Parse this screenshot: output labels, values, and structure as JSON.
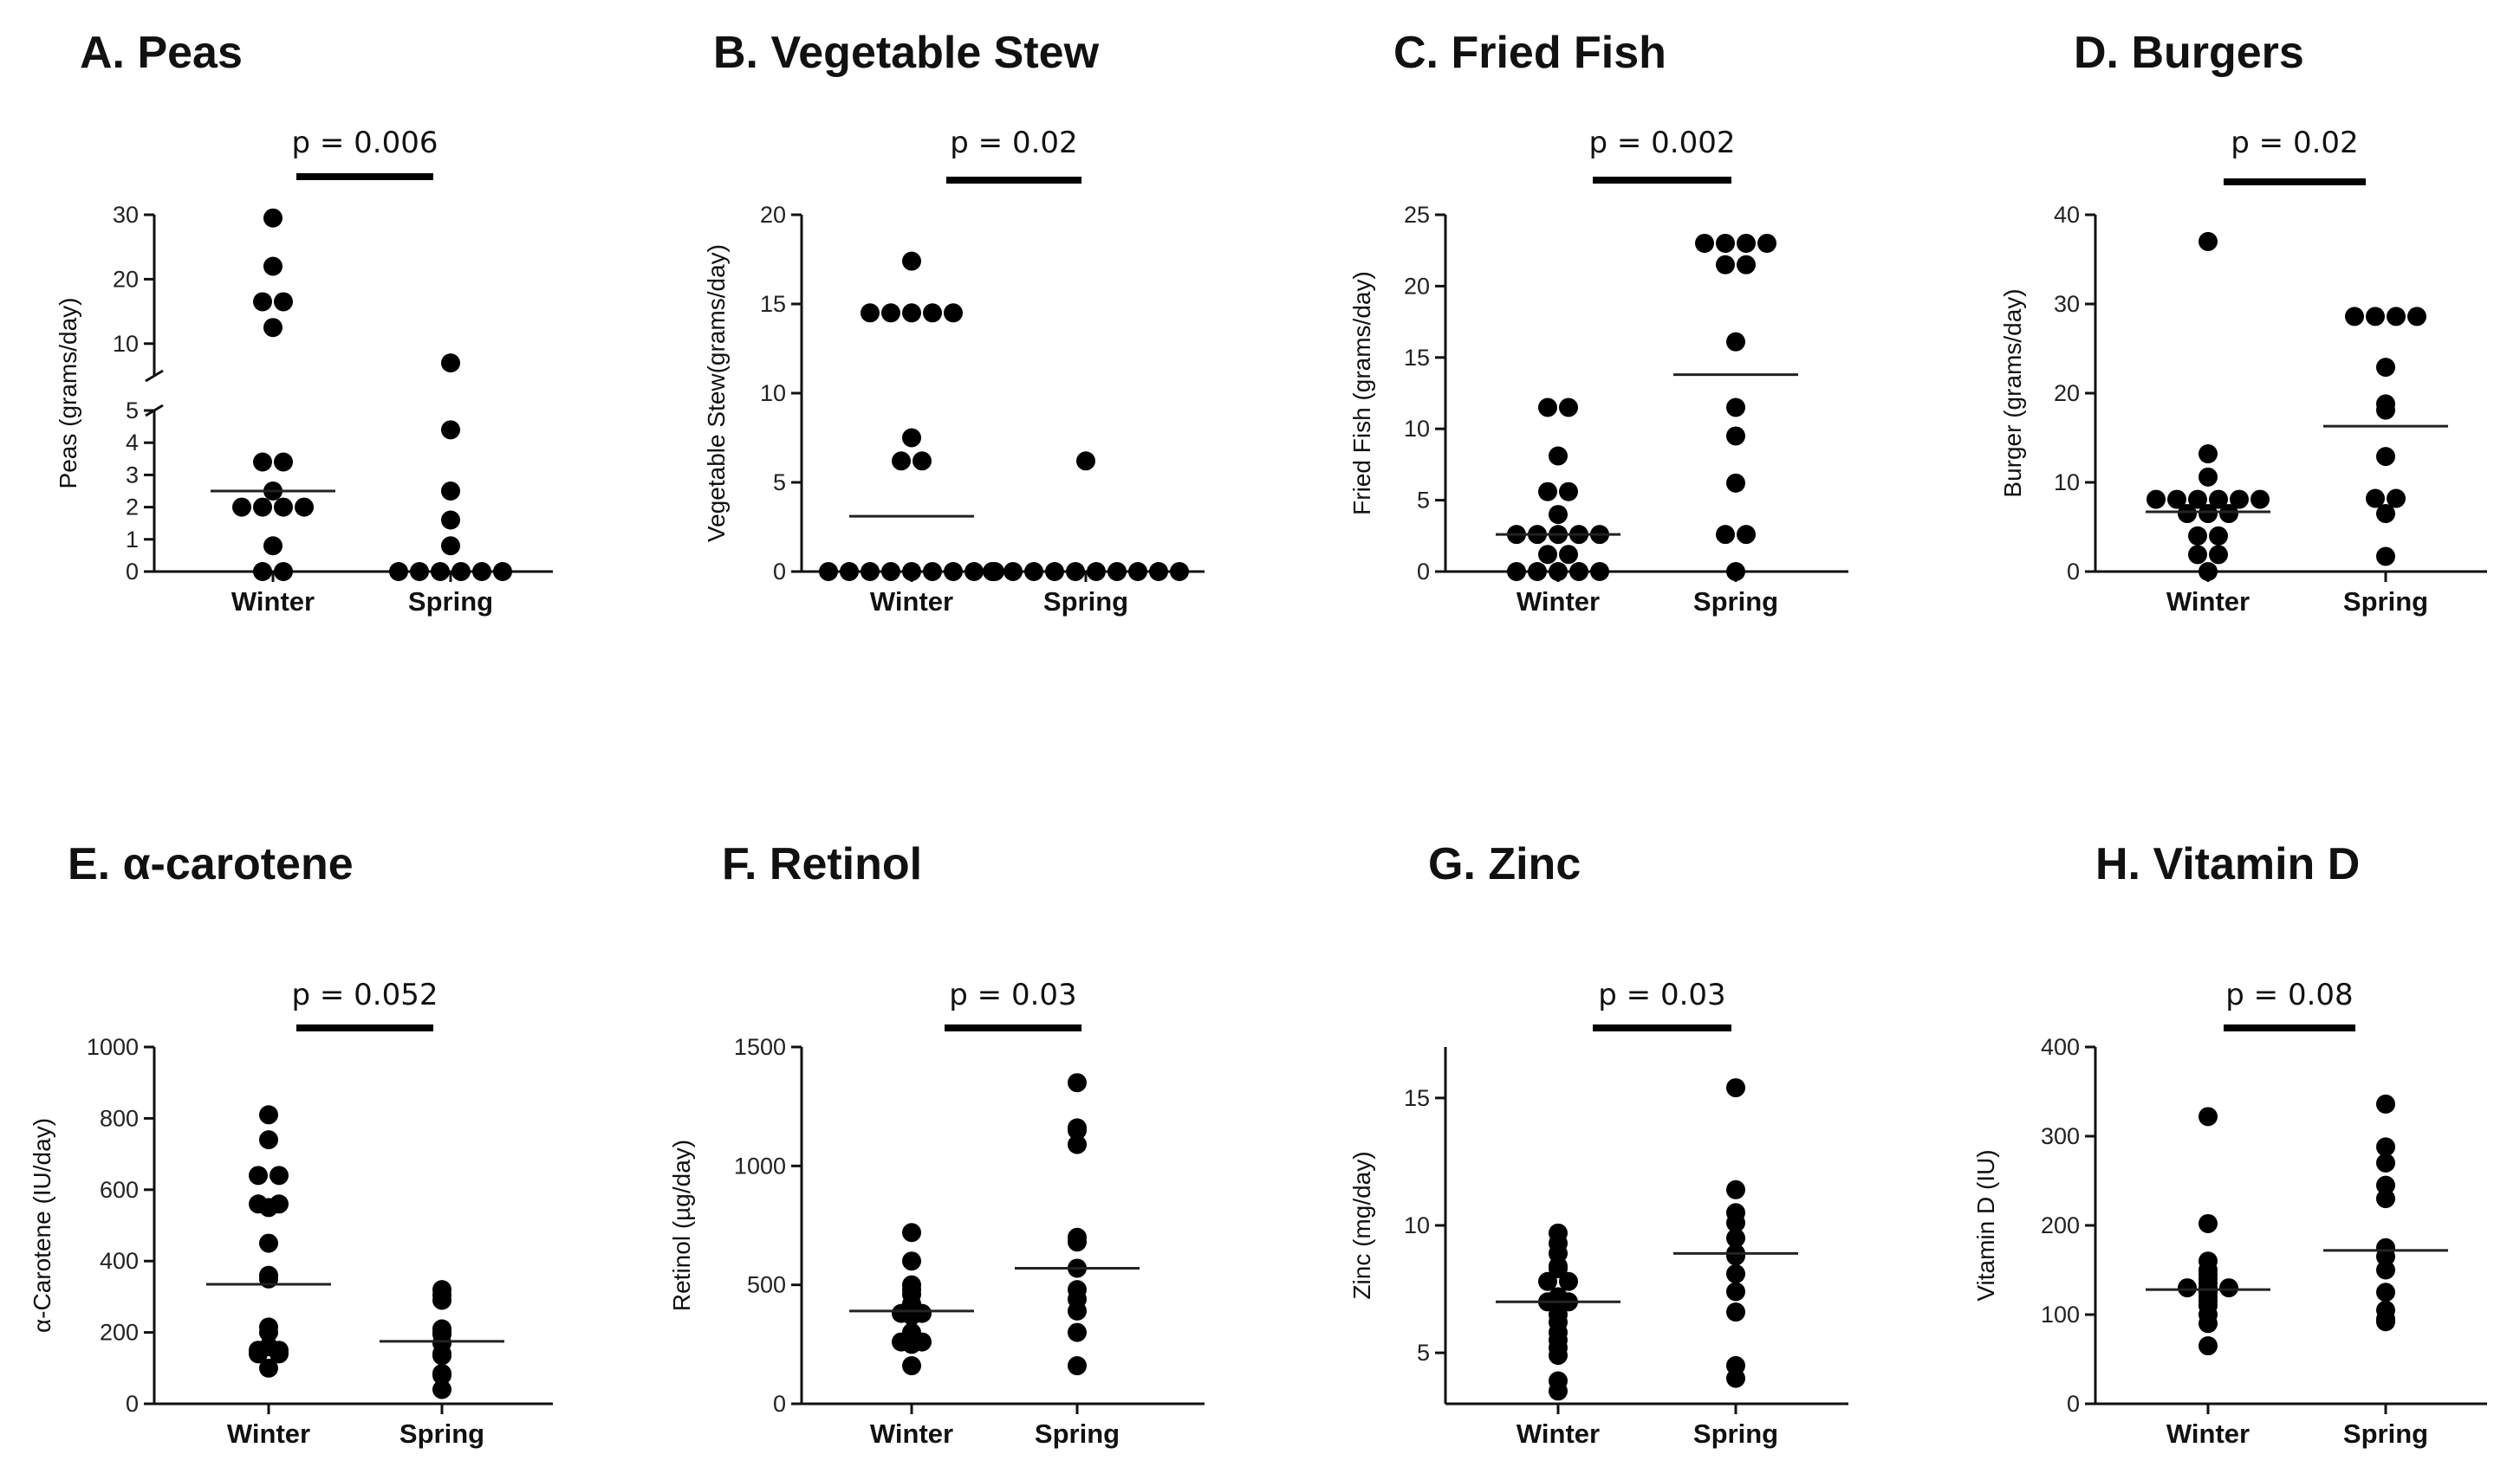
{
  "chart_data": [
    {
      "type": "scatter",
      "panel": "A",
      "title": "A.  Peas",
      "ylabel": "Peas (grams/day)",
      "categories": [
        "Winter",
        "Spring"
      ],
      "axis_break": {
        "lower_range": [
          0,
          5
        ],
        "upper_range": [
          5,
          30
        ]
      },
      "yticks_lower": [
        0,
        1,
        2,
        3,
        4,
        5
      ],
      "yticks_upper": [
        10,
        20,
        30
      ],
      "ylim": [
        0,
        30
      ],
      "pvalue": "p = 0.006",
      "series": [
        {
          "name": "Winter",
          "values": [
            29.5,
            22,
            16.5,
            16.5,
            12.5,
            3.4,
            3.4,
            2.5,
            2.0,
            2.0,
            2.0,
            2.0,
            0.8,
            0,
            0
          ],
          "mean": 2.5
        },
        {
          "name": "Spring",
          "values": [
            7,
            4.4,
            2.5,
            1.6,
            0.8,
            0,
            0,
            0,
            0,
            0,
            0
          ],
          "mean": null
        }
      ]
    },
    {
      "type": "scatter",
      "panel": "B",
      "title": "B. Vegetable Stew",
      "ylabel": "Vegetable Stew(grams/day)",
      "categories": [
        "Winter",
        "Spring"
      ],
      "yticks": [
        0,
        5,
        10,
        15,
        20
      ],
      "ylim": [
        0,
        20
      ],
      "pvalue": "p = 0.02",
      "series": [
        {
          "name": "Winter",
          "values": [
            17.4,
            14.5,
            14.5,
            14.5,
            14.5,
            14.5,
            7.5,
            6.2,
            6.2,
            0,
            0,
            0,
            0,
            0,
            0,
            0,
            0,
            0
          ],
          "mean": 3.1
        },
        {
          "name": "Spring",
          "values": [
            6.2,
            0,
            0,
            0,
            0,
            0,
            0,
            0,
            0,
            0,
            0
          ],
          "mean": null
        }
      ]
    },
    {
      "type": "scatter",
      "panel": "C",
      "title": "C. Fried Fish",
      "ylabel": "Fried Fish (grams/day)",
      "categories": [
        "Winter",
        "Spring"
      ],
      "yticks": [
        0,
        5,
        10,
        15,
        20,
        25
      ],
      "ylim": [
        0,
        25
      ],
      "pvalue": "p = 0.002",
      "series": [
        {
          "name": "Winter",
          "values": [
            11.5,
            11.5,
            8.1,
            5.6,
            5.6,
            4.0,
            2.6,
            2.6,
            2.6,
            2.6,
            2.6,
            1.2,
            1.2,
            0,
            0,
            0,
            0,
            0
          ],
          "mean": 2.6
        },
        {
          "name": "Spring",
          "values": [
            23,
            23,
            23,
            23,
            21.5,
            21.5,
            16.1,
            11.5,
            9.5,
            6.2,
            2.6,
            2.6,
            0
          ],
          "mean": 13.8
        }
      ]
    },
    {
      "type": "scatter",
      "panel": "D",
      "title": "D. Burgers",
      "ylabel": "Burger (grams/day)",
      "categories": [
        "Winter",
        "Spring"
      ],
      "yticks": [
        0,
        10,
        20,
        30,
        40
      ],
      "ylim": [
        0,
        40
      ],
      "pvalue": "p = 0.02",
      "series": [
        {
          "name": "Winter",
          "values": [
            37,
            13.2,
            10.6,
            8.1,
            8.1,
            8.1,
            8.1,
            8.1,
            8.1,
            6.5,
            6.5,
            6.5,
            4.0,
            4.0,
            1.9,
            1.9,
            0
          ],
          "mean": 6.7
        },
        {
          "name": "Spring",
          "values": [
            28.6,
            28.6,
            28.6,
            28.6,
            22.9,
            18.8,
            18.1,
            12.9,
            8.2,
            8.2,
            6.5,
            1.7
          ],
          "mean": 16.3
        }
      ]
    },
    {
      "type": "scatter",
      "panel": "E",
      "title": "E.  α-carotene",
      "ylabel": "α-Carotene (IU/day)",
      "categories": [
        "Winter",
        "Spring"
      ],
      "yticks": [
        0,
        200,
        400,
        600,
        800,
        1000
      ],
      "ylim": [
        0,
        1000
      ],
      "pvalue": "p = 0.052",
      "series": [
        {
          "name": "Winter",
          "values": [
            810,
            740,
            640,
            640,
            560,
            560,
            550,
            450,
            360,
            350,
            215,
            200,
            160,
            150,
            150,
            140,
            140,
            100
          ],
          "mean": 335
        },
        {
          "name": "Spring",
          "values": [
            320,
            305,
            290,
            210,
            200,
            195,
            170,
            140,
            135,
            85,
            80,
            40
          ],
          "mean": 175
        }
      ]
    },
    {
      "type": "scatter",
      "panel": "F",
      "title": "F. Retinol",
      "ylabel": "Retinol (µg/day)",
      "categories": [
        "Winter",
        "Spring"
      ],
      "yticks": [
        0,
        500,
        1000,
        1500
      ],
      "ylim": [
        0,
        1500
      ],
      "pvalue": "p = 0.03",
      "series": [
        {
          "name": "Winter",
          "values": [
            720,
            600,
            500,
            480,
            460,
            420,
            410,
            400,
            390,
            380,
            380,
            370,
            300,
            280,
            260,
            260,
            250,
            160
          ],
          "mean": 390
        },
        {
          "name": "Spring",
          "values": [
            1350,
            1160,
            1150,
            1090,
            700,
            680,
            570,
            480,
            440,
            390,
            300,
            160
          ],
          "mean": 570
        }
      ]
    },
    {
      "type": "scatter",
      "panel": "G",
      "title": "G. Zinc",
      "ylabel": "Zinc (mg/day)",
      "categories": [
        "Winter",
        "Spring"
      ],
      "yticks": [
        5,
        10,
        15
      ],
      "ylim": [
        3,
        17
      ],
      "pvalue": "p = 0.03",
      "series": [
        {
          "name": "Winter",
          "values": [
            9.7,
            9.3,
            8.9,
            8.4,
            8.3,
            7.8,
            7.8,
            7.2,
            7.0,
            7.0,
            6.5,
            6.2,
            5.8,
            5.5,
            5.2,
            4.9,
            3.9,
            3.5
          ],
          "mean": 7.0
        },
        {
          "name": "Spring",
          "values": [
            15.4,
            11.4,
            10.5,
            10.1,
            9.5,
            8.9,
            8.8,
            8.1,
            7.4,
            6.6,
            4.5,
            4.0
          ],
          "mean": 8.9
        }
      ]
    },
    {
      "type": "scatter",
      "panel": "H",
      "title": "H. Vitamin D",
      "ylabel": "Vitamin D (IU)",
      "categories": [
        "Winter",
        "Spring"
      ],
      "yticks": [
        0,
        100,
        200,
        300,
        400
      ],
      "ylim": [
        0,
        400
      ],
      "pvalue": "p = 0.08",
      "series": [
        {
          "name": "Winter",
          "values": [
            322,
            202,
            160,
            150,
            145,
            140,
            135,
            130,
            130,
            130,
            128,
            125,
            120,
            115,
            110,
            100,
            90,
            65
          ],
          "mean": 128
        },
        {
          "name": "Spring",
          "values": [
            336,
            288,
            270,
            245,
            230,
            175,
            165,
            150,
            125,
            105,
            95,
            92
          ],
          "mean": 172
        }
      ]
    }
  ]
}
